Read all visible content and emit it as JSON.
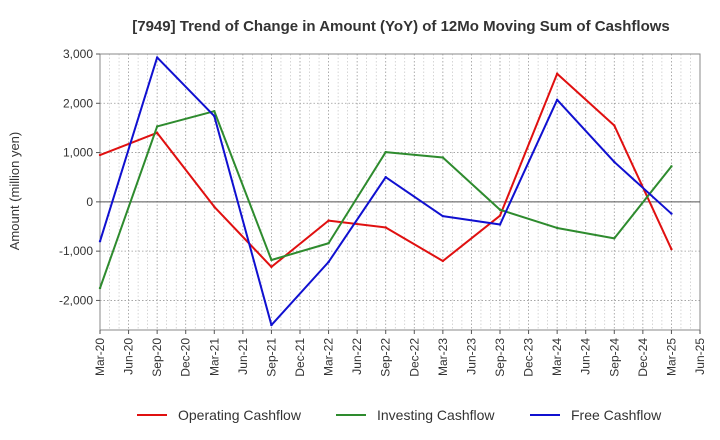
{
  "chart_data": {
    "type": "line",
    "title": "[7949]  Trend of Change in Amount (YoY) of 12Mo Moving Sum of Cashflows",
    "ylabel": "Amount (million yen)",
    "xlabel": "",
    "ylim": [
      -2600,
      3000
    ],
    "yticks": [
      3000,
      2000,
      1000,
      0,
      -1000,
      -2000
    ],
    "ytick_labels": [
      "3,000",
      "2,000",
      "1,000",
      "0",
      "-1,000",
      "-2,000"
    ],
    "categories": [
      "Mar-20",
      "Jun-20",
      "Sep-20",
      "Dec-20",
      "Mar-21",
      "Jun-21",
      "Sep-21",
      "Dec-21",
      "Mar-22",
      "Jun-22",
      "Sep-22",
      "Dec-22",
      "Mar-23",
      "Jun-23",
      "Sep-23",
      "Dec-23",
      "Mar-24",
      "Jun-24",
      "Sep-24",
      "Dec-24",
      "Mar-25",
      "Jun-25"
    ],
    "grid": true,
    "legend_position": "bottom",
    "series": [
      {
        "name": "Operating Cashflow",
        "color": "#e01010",
        "values": [
          950,
          null,
          1400,
          null,
          -100,
          null,
          -1320,
          null,
          -380,
          null,
          -520,
          null,
          -1200,
          null,
          -280,
          null,
          2600,
          null,
          1550,
          null,
          -960,
          null
        ]
      },
      {
        "name": "Investing Cashflow",
        "color": "#2e8b2e",
        "values": [
          -1750,
          null,
          1530,
          null,
          1840,
          null,
          -1180,
          null,
          -840,
          null,
          1010,
          null,
          900,
          null,
          -160,
          null,
          -530,
          null,
          -740,
          null,
          720,
          null
        ]
      },
      {
        "name": "Free Cashflow",
        "color": "#1010d0",
        "values": [
          -800,
          null,
          2930,
          null,
          1740,
          null,
          -2500,
          null,
          -1220,
          null,
          500,
          null,
          -290,
          null,
          -460,
          null,
          2070,
          null,
          810,
          null,
          -240,
          null
        ]
      }
    ]
  }
}
